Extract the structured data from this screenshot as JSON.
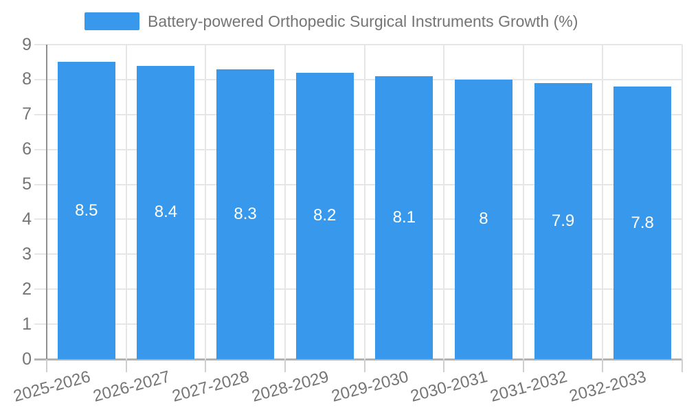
{
  "chart_data": {
    "type": "bar",
    "title": "Battery-powered Orthopedic Surgical Instruments Growth (%)",
    "categories": [
      "2025-2026",
      "2026-2027",
      "2027-2028",
      "2028-2029",
      "2029-2030",
      "2030-2031",
      "2031-2032",
      "2032-2033"
    ],
    "values": [
      8.5,
      8.4,
      8.3,
      8.2,
      8.1,
      8,
      7.9,
      7.8
    ],
    "value_labels": [
      "8.5",
      "8.4",
      "8.3",
      "8.2",
      "8.1",
      "8",
      "7.9",
      "7.8"
    ],
    "ytick_labels": [
      "0",
      "1",
      "2",
      "3",
      "4",
      "5",
      "6",
      "7",
      "8",
      "9"
    ],
    "ylim": [
      0,
      9
    ],
    "grid": true,
    "legend_position": "top-center",
    "x_label_rotation_deg": -15,
    "colors": {
      "bar": "#3898EC",
      "text": "#757575",
      "value_label": "#ffffff",
      "gridline": "#e6e6e6",
      "axis_y_line": "#8f8f8f",
      "axis_x_line": "#b3b3b3",
      "tick": "#cfcfcf"
    }
  }
}
